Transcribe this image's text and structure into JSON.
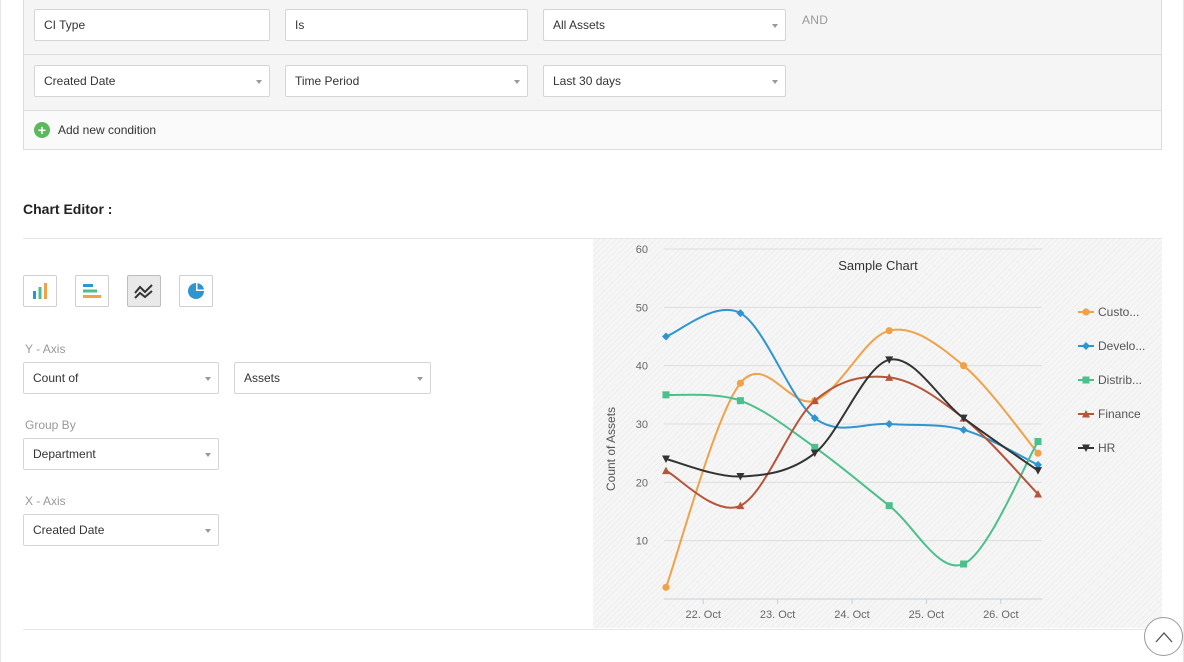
{
  "conditions": {
    "row1": {
      "field": "CI Type",
      "operator": "Is",
      "value": "All Assets",
      "logic": "AND"
    },
    "row2": {
      "field": "Created Date",
      "operator": "Time Period",
      "value": "Last 30 days"
    },
    "add_condition_label": "Add new condition"
  },
  "chart_editor": {
    "title": "Chart Editor :",
    "chart_types": [
      {
        "name": "bar-chart-icon",
        "active": false
      },
      {
        "name": "horizontal-bar-chart-icon",
        "active": false
      },
      {
        "name": "line-chart-icon",
        "active": true
      },
      {
        "name": "pie-chart-icon",
        "active": false
      }
    ],
    "y_axis": {
      "label": "Y - Axis",
      "aggregate": "Count of",
      "field": "Assets"
    },
    "group_by": {
      "label": "Group By",
      "value": "Department"
    },
    "x_axis": {
      "label": "X - Axis",
      "value": "Created Date"
    }
  },
  "chart_data": {
    "type": "line",
    "title": "Sample Chart",
    "ylabel": "Count of Assets",
    "xlabel": "",
    "ylim": [
      0,
      60
    ],
    "yticks": [
      10,
      20,
      30,
      40,
      50,
      60
    ],
    "x_tick_labels": [
      "22. Oct",
      "23. Oct",
      "24. Oct",
      "25. Oct",
      "26. Oct"
    ],
    "x": [
      0,
      1,
      2,
      3,
      4,
      5
    ],
    "legend_position": "right",
    "series": [
      {
        "name": "Custo...",
        "color": "#f0a24a",
        "marker": "circle",
        "values": [
          2,
          37,
          34,
          46,
          40,
          25
        ]
      },
      {
        "name": "Develo...",
        "color": "#2f95d1",
        "marker": "diamond",
        "values": [
          45,
          49,
          31,
          30,
          29,
          23
        ]
      },
      {
        "name": "Distrib...",
        "color": "#4cc08a",
        "marker": "square",
        "values": [
          35,
          34,
          26,
          16,
          6,
          27
        ]
      },
      {
        "name": "Finance",
        "color": "#b5553a",
        "marker": "triangle",
        "values": [
          22,
          16,
          34,
          38,
          31,
          18
        ]
      },
      {
        "name": "HR",
        "color": "#333333",
        "marker": "triangle-down",
        "values": [
          24,
          21,
          25,
          41,
          31,
          22
        ]
      }
    ]
  }
}
